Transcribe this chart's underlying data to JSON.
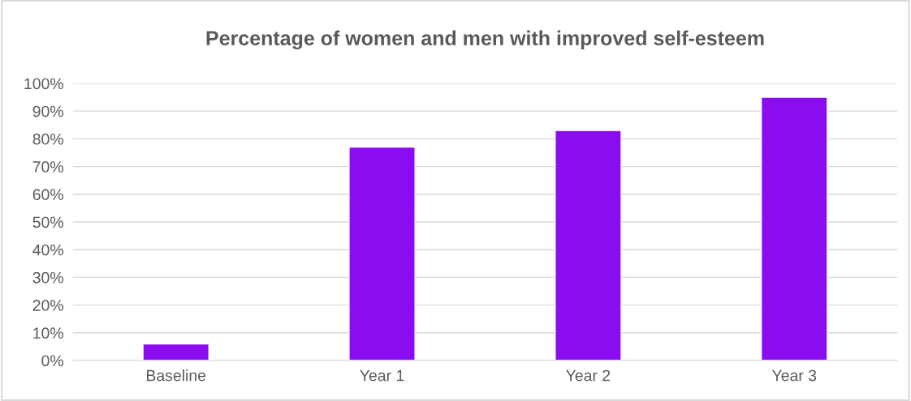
{
  "chart_data": {
    "type": "bar",
    "title": "Percentage of women and men with improved self-esteem",
    "categories": [
      "Baseline",
      "Year 1",
      "Year 2",
      "Year 3"
    ],
    "values": [
      6,
      77,
      83,
      95
    ],
    "color": "#8a0cf0",
    "ylim": [
      0,
      100
    ],
    "yticks": [
      {
        "value": 0,
        "label": "0%"
      },
      {
        "value": 10,
        "label": "10%"
      },
      {
        "value": 20,
        "label": "20%"
      },
      {
        "value": 30,
        "label": "30%"
      },
      {
        "value": 40,
        "label": "40%"
      },
      {
        "value": 50,
        "label": "50%"
      },
      {
        "value": 60,
        "label": "60%"
      },
      {
        "value": 70,
        "label": "70%"
      },
      {
        "value": 80,
        "label": "80%"
      },
      {
        "value": 90,
        "label": "90%"
      },
      {
        "value": 100,
        "label": "100%"
      }
    ],
    "grid": "y",
    "legend": false
  }
}
